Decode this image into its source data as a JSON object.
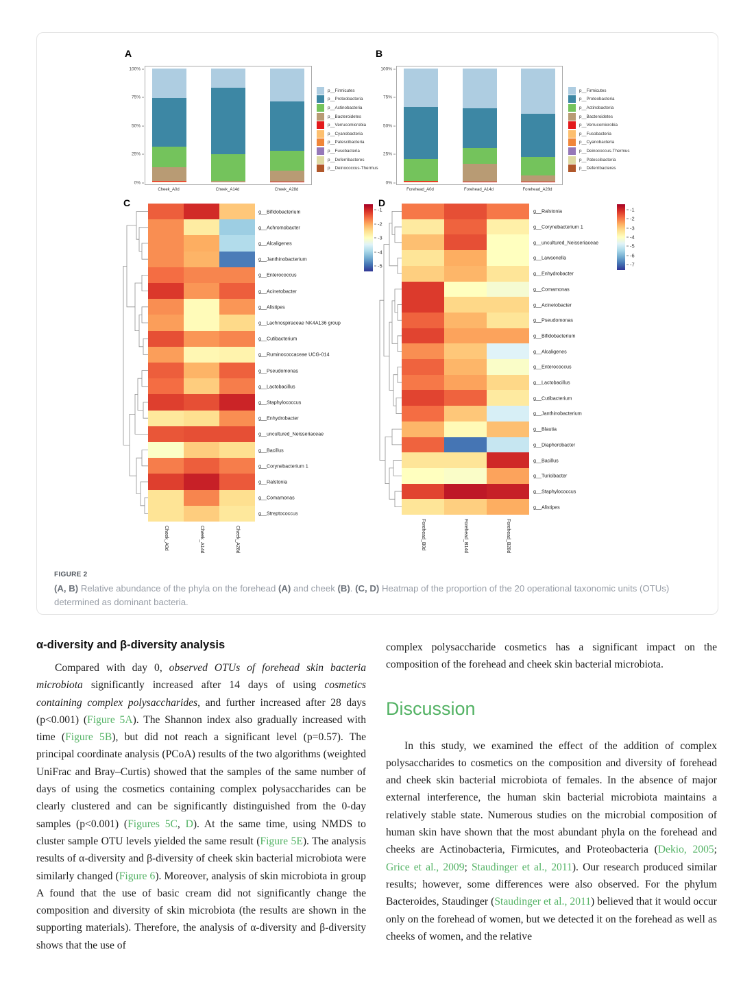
{
  "figure": {
    "panel_labels": {
      "a": "A",
      "b": "B",
      "c": "C",
      "d": "D"
    },
    "caption": {
      "label": "FIGURE 2",
      "segments": [
        {
          "t": "(A, B)",
          "s": "b"
        },
        {
          "t": " Relative abundance of the phyla on the forehead "
        },
        {
          "t": "(A)",
          "s": "b"
        },
        {
          "t": " and cheek "
        },
        {
          "t": "(B)",
          "s": "b"
        },
        {
          "t": ". "
        },
        {
          "t": "(C, D)",
          "s": "b"
        },
        {
          "t": " Heatmap of the proportion of the 20 operational taxonomic units (OTUs) determined as dominant bacteria."
        }
      ]
    }
  },
  "chart_data": [
    {
      "id": "A",
      "type": "bar",
      "subtype": "stacked_percent",
      "title": "Relative abundance of phyla - cheek",
      "categories": [
        "Cheek_A0d",
        "Cheek_A14d",
        "Cheek_A28d"
      ],
      "y_ticks": [
        "0%",
        "25%",
        "50%",
        "75%",
        "100%"
      ],
      "ylim": [
        0,
        100
      ],
      "legend_position": "right",
      "legend": [
        {
          "label": "p__Firmicutes",
          "color": "#aecde1"
        },
        {
          "label": "p__Proteobacteria",
          "color": "#3d87a4"
        },
        {
          "label": "p__Actinobacteria",
          "color": "#74c35c"
        },
        {
          "label": "p__Bacteroidetes",
          "color": "#b89b74"
        },
        {
          "label": "p__Verrucomicrobia",
          "color": "#e31a1c"
        },
        {
          "label": "p__Cyanobacteria",
          "color": "#fdbf6f"
        },
        {
          "label": "p__Patescibacteria",
          "color": "#f0863a"
        },
        {
          "label": "p__Fusobacteria",
          "color": "#9678b8"
        },
        {
          "label": "p__Deferribacteres",
          "color": "#ded9a2"
        },
        {
          "label": "p__Deinococcus-Thermus",
          "color": "#b0572a"
        }
      ],
      "bars": [
        {
          "category": "Cheek_A0d",
          "segments": [
            {
              "phylum": "p__Cyanobacteria",
              "color": "#fdbf6f",
              "pct": 0.5
            },
            {
              "phylum": "p__Verrucomicrobia",
              "color": "#e31a1c",
              "pct": 1.0
            },
            {
              "phylum": "p__Bacteroidetes",
              "color": "#b89b74",
              "pct": 12.0
            },
            {
              "phylum": "p__Actinobacteria",
              "color": "#74c35c",
              "pct": 18.0
            },
            {
              "phylum": "p__Proteobacteria",
              "color": "#3d87a4",
              "pct": 42.5
            },
            {
              "phylum": "p__Firmicutes",
              "color": "#aecde1",
              "pct": 26.0
            }
          ]
        },
        {
          "category": "Cheek_A14d",
          "segments": [
            {
              "phylum": "p__Bacteroidetes",
              "color": "#b89b74",
              "pct": 1.0
            },
            {
              "phylum": "p__Actinobacteria",
              "color": "#74c35c",
              "pct": 24.0
            },
            {
              "phylum": "p__Proteobacteria",
              "color": "#3d87a4",
              "pct": 58.0
            },
            {
              "phylum": "p__Firmicutes",
              "color": "#aecde1",
              "pct": 17.0
            }
          ]
        },
        {
          "category": "Cheek_A28d",
          "segments": [
            {
              "phylum": "p__Verrucomicrobia",
              "color": "#e31a1c",
              "pct": 0.5
            },
            {
              "phylum": "p__Bacteroidetes",
              "color": "#b89b74",
              "pct": 10.0
            },
            {
              "phylum": "p__Actinobacteria",
              "color": "#74c35c",
              "pct": 17.0
            },
            {
              "phylum": "p__Proteobacteria",
              "color": "#3d87a4",
              "pct": 43.5
            },
            {
              "phylum": "p__Firmicutes",
              "color": "#aecde1",
              "pct": 29.0
            }
          ]
        }
      ]
    },
    {
      "id": "B",
      "type": "bar",
      "subtype": "stacked_percent",
      "title": "Relative abundance of phyla - forehead",
      "categories": [
        "Forehead_A0d",
        "Forehead_A14d",
        "Forehead_A28d"
      ],
      "y_ticks": [
        "0%",
        "25%",
        "50%",
        "75%",
        "100%"
      ],
      "ylim": [
        0,
        100
      ],
      "legend_position": "right",
      "legend": [
        {
          "label": "p__Firmicutes",
          "color": "#aecde1"
        },
        {
          "label": "p__Proteobacteria",
          "color": "#3d87a4"
        },
        {
          "label": "p__Actinobacteria",
          "color": "#74c35c"
        },
        {
          "label": "p__Bacteroidetes",
          "color": "#b89b74"
        },
        {
          "label": "p__Verrucomicrobia",
          "color": "#e31a1c"
        },
        {
          "label": "p__Fusobacteria",
          "color": "#fdbf6f"
        },
        {
          "label": "p__Cyanobacteria",
          "color": "#f0863a"
        },
        {
          "label": "p__Deinococcus-Thermus",
          "color": "#9678b8"
        },
        {
          "label": "p__Patescibacteria",
          "color": "#ded9a2"
        },
        {
          "label": "p__Deferribacteres",
          "color": "#b0572a"
        }
      ],
      "bars": [
        {
          "category": "Forehead_A0d",
          "segments": [
            {
              "phylum": "p__Cyanobacteria",
              "color": "#f0863a",
              "pct": 0.7
            },
            {
              "phylum": "p__Verrucomicrobia",
              "color": "#e31a1c",
              "pct": 0.5
            },
            {
              "phylum": "p__Actinobacteria",
              "color": "#74c35c",
              "pct": 19.3
            },
            {
              "phylum": "p__Proteobacteria",
              "color": "#3d87a4",
              "pct": 45.5
            },
            {
              "phylum": "p__Firmicutes",
              "color": "#aecde1",
              "pct": 34.0
            }
          ]
        },
        {
          "category": "Forehead_A14d",
          "segments": [
            {
              "phylum": "p__Verrucomicrobia",
              "color": "#e31a1c",
              "pct": 0.5
            },
            {
              "phylum": "p__Bacteroidetes",
              "color": "#b89b74",
              "pct": 16.0
            },
            {
              "phylum": "p__Actinobacteria",
              "color": "#74c35c",
              "pct": 13.5
            },
            {
              "phylum": "p__Proteobacteria",
              "color": "#3d87a4",
              "pct": 35.0
            },
            {
              "phylum": "p__Firmicutes",
              "color": "#aecde1",
              "pct": 35.0
            }
          ]
        },
        {
          "category": "Forehead_A28d",
          "segments": [
            {
              "phylum": "p__Verrucomicrobia",
              "color": "#e31a1c",
              "pct": 0.8
            },
            {
              "phylum": "p__Bacteroidetes",
              "color": "#b89b74",
              "pct": 5.2
            },
            {
              "phylum": "p__Actinobacteria",
              "color": "#74c35c",
              "pct": 16.5
            },
            {
              "phylum": "p__Proteobacteria",
              "color": "#3d87a4",
              "pct": 37.5
            },
            {
              "phylum": "p__Firmicutes",
              "color": "#aecde1",
              "pct": 40.0
            }
          ]
        }
      ]
    },
    {
      "id": "C",
      "type": "heatmap",
      "title": "Dominant genera heatmap - cheek",
      "columns": [
        "Cheek_A0d",
        "Cheek_A14d",
        "Cheek_A28d"
      ],
      "rows": [
        "g__Bifidobacterium",
        "g__Achromobacter",
        "g__Alcaligenes",
        "g__Janthinobacterium",
        "g__Enterococcus",
        "g__Acinetobacter",
        "g__Alistipes",
        "g__Lachnospiraceae NK4A136 group",
        "g__Cutibacterium",
        "g__Ruminococcaceae UCG-014",
        "g__Pseudomonas",
        "g__Lactobacillus",
        "g__Staphylococcus",
        "g__Enhydrobacter",
        "g__uncultured_Neisseriaceae",
        "g__Bacillus",
        "g__Corynebacterium 1",
        "g__Ralstonia",
        "g__Comamonas",
        "g__Streptococcus"
      ],
      "values": [
        [
          -1.7,
          -1.35,
          -2.4
        ],
        [
          -2.0,
          -2.75,
          -3.9
        ],
        [
          -2.0,
          -2.2,
          -3.75
        ],
        [
          -2.0,
          -2.25,
          -4.55
        ],
        [
          -1.8,
          -1.95,
          -1.95
        ],
        [
          -1.45,
          -2.05,
          -1.7
        ],
        [
          -2.0,
          -2.95,
          -2.05
        ],
        [
          -2.1,
          -2.95,
          -2.55
        ],
        [
          -1.6,
          -2.05,
          -1.95
        ],
        [
          -2.1,
          -2.9,
          -2.85
        ],
        [
          -1.7,
          -2.25,
          -1.72
        ],
        [
          -1.8,
          -2.45,
          -1.9
        ],
        [
          -1.5,
          -1.6,
          -1.3
        ],
        [
          -2.7,
          -2.6,
          -2.0
        ],
        [
          -1.65,
          -1.6,
          -1.6
        ],
        [
          -3.05,
          -2.45,
          -2.6
        ],
        [
          -1.9,
          -1.7,
          -1.9
        ],
        [
          -1.5,
          -1.27,
          -1.67
        ],
        [
          -2.65,
          -1.95,
          -2.6
        ],
        [
          -2.65,
          -2.45,
          -2.7
        ]
      ],
      "scale_max": -1,
      "scale_min": -5,
      "colorbar_ticks": [
        "-1",
        "-2",
        "-3",
        "-4",
        "-5"
      ],
      "colormap": "RdYlBu"
    },
    {
      "id": "D",
      "type": "heatmap",
      "title": "Dominant genera heatmap - forehead",
      "columns": [
        "Forehead_B0d",
        "Forehead_B14d",
        "Forehead_B28d"
      ],
      "rows": [
        "g__Ralstonia",
        "g__Corynebacterium 1",
        "g__uncultured_Neisseriaceae",
        "g__Lawsonella",
        "g__Enhydrobacter",
        "g__Comamonas",
        "g__Acinetobacter",
        "g__Pseudomonas",
        "g__Bifidobacterium",
        "g__Alcaligenes",
        "g__Enterococcus",
        "g__Lactobacillus",
        "g__Cutibacterium",
        "g__Janthinobacterium",
        "g__Blautia",
        "g__Diaphorobacter",
        "g__Bacillus",
        "g__Turicibacter",
        "g__Staphylococcus",
        "g__Alistipes"
      ],
      "values": [
        [
          -2.3,
          -1.9,
          -2.3
        ],
        [
          -3.6,
          -2.1,
          -3.7
        ],
        [
          -3.0,
          -1.9,
          -4.0
        ],
        [
          -3.5,
          -2.8,
          -4.0
        ],
        [
          -3.2,
          -2.9,
          -3.5
        ],
        [
          -1.7,
          -4.0,
          -4.2
        ],
        [
          -1.7,
          -3.3,
          -3.3
        ],
        [
          -2.1,
          -2.9,
          -3.5
        ],
        [
          -1.8,
          -2.7,
          -2.7
        ],
        [
          -2.5,
          -3.1,
          -4.6
        ],
        [
          -2.1,
          -2.9,
          -4.1
        ],
        [
          -2.3,
          -2.7,
          -3.3
        ],
        [
          -1.8,
          -2.1,
          -3.6
        ],
        [
          -2.2,
          -3.1,
          -4.7
        ],
        [
          -2.9,
          -3.9,
          -3.0
        ],
        [
          -2.1,
          -6.4,
          -4.9
        ],
        [
          -3.5,
          -3.5,
          -1.5
        ],
        [
          -4.0,
          -4.1,
          -2.7
        ],
        [
          -1.8,
          -1.3,
          -1.4
        ],
        [
          -3.5,
          -3.2,
          -2.8
        ]
      ],
      "scale_max": -1,
      "scale_min": -7,
      "colorbar_ticks": [
        "-1",
        "-2",
        "-3",
        "-4",
        "-5",
        "-6",
        "-7"
      ],
      "colormap": "RdYlBu"
    }
  ],
  "article": {
    "left": {
      "heading": "α-diversity and β-diversity analysis",
      "paragraph": [
        {
          "t": "Compared with day 0, "
        },
        {
          "t": "observed OTUs of forehead skin bacteria microbiota",
          "s": "i"
        },
        {
          "t": " significantly increased after 14 days of using "
        },
        {
          "t": "cosmetics containing complex polysaccharides",
          "s": "i"
        },
        {
          "t": ", and further increased after 28 days (p<0.001) ("
        },
        {
          "t": "Figure 5A",
          "s": "link",
          "n": "figure-5a-link"
        },
        {
          "t": "). The Shannon index also gradually increased with time ("
        },
        {
          "t": "Figure 5B",
          "s": "link",
          "n": "figure-5b-link"
        },
        {
          "t": "), but did not reach a significant level (p=0.57). The principal coordinate analysis (PCoA) results of the two algorithms (weighted UniFrac and Bray–Curtis) showed that the samples of the same number of days of using the cosmetics containing complex polysaccharides can be clearly clustered and can be significantly distinguished from the 0-day samples (p<0.001) ("
        },
        {
          "t": "Figures 5C",
          "s": "link",
          "n": "figures-5c-link"
        },
        {
          "t": ", "
        },
        {
          "t": "D",
          "s": "link",
          "n": "figure-5d-link"
        },
        {
          "t": "). At the same time, using NMDS to cluster sample OTU levels yielded the same result ("
        },
        {
          "t": "Figure 5E",
          "s": "link",
          "n": "figure-5e-link"
        },
        {
          "t": "). The analysis results of α-diversity and β-diversity of cheek skin bacterial microbiota were similarly changed ("
        },
        {
          "t": "Figure 6",
          "s": "link",
          "n": "figure-6-link"
        },
        {
          "t": "). Moreover, analysis of skin microbiota in group A found that the use of basic cream did not significantly change the composition and diversity of skin microbiota (the results are shown in the supporting materials). Therefore, the analysis of α-diversity and β-diversity shows that the use of"
        }
      ]
    },
    "right": {
      "paragraph_cont": [
        {
          "t": "complex polysaccharide cosmetics has a significant impact on the composition of the forehead and cheek skin bacterial microbiota."
        }
      ],
      "heading": "Discussion",
      "paragraph": [
        {
          "t": "In this study, we examined the effect of the addition of complex polysaccharides to cosmetics on the composition and diversity of forehead and cheek skin bacterial microbiota of females. In the absence of major external interference, the human skin bacterial microbiota maintains a relatively stable state. Numerous studies on the microbial composition of human skin have shown that the most abundant phyla on the forehead and cheeks are Actinobacteria, Firmicutes, and Proteobacteria ("
        },
        {
          "t": "Dekio, 2005",
          "s": "link",
          "n": "dekio-2005-link"
        },
        {
          "t": "; "
        },
        {
          "t": "Grice et al., 2009",
          "s": "link",
          "n": "grice-2009-link"
        },
        {
          "t": "; "
        },
        {
          "t": "Staudinger et al., 2011",
          "s": "link",
          "n": "staudinger-2011-link"
        },
        {
          "t": "). Our research produced similar results; however, some differences were also observed. For the phylum Bacteroides, Staudinger ("
        },
        {
          "t": "Staudinger et al., 2011",
          "s": "link",
          "n": "staudinger-2011-link-2"
        },
        {
          "t": ") believed that it would occur only on the forehead of women, but we detected it on the forehead as well as cheeks of women, and the relative"
        }
      ]
    }
  },
  "colors": {
    "link_green": "#53b264",
    "heading_green": "#53b264",
    "caption_gray": "#979da6"
  }
}
